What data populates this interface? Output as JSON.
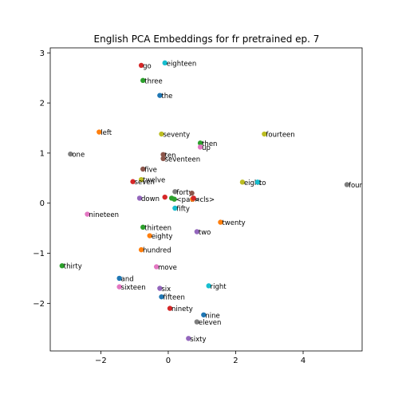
{
  "chart_data": {
    "type": "scatter",
    "title": "English PCA Embeddings for fr pretrained ep. 7",
    "xlabel": "",
    "ylabel": "",
    "xlim": [
      -3.5,
      5.75
    ],
    "ylim": [
      -2.95,
      3.1
    ],
    "xticks": [
      -2,
      0,
      2,
      4
    ],
    "yticks": [
      -2,
      -1,
      0,
      1,
      2,
      3
    ],
    "xtick_labels": [
      "−2",
      "0",
      "2",
      "4"
    ],
    "ytick_labels": [
      "−2",
      "−1",
      "0",
      "1",
      "2",
      "3"
    ],
    "grid": false,
    "points": [
      {
        "label": "go",
        "x": -0.8,
        "y": 2.75,
        "color": "#d62728"
      },
      {
        "label": "eighteen",
        "x": -0.1,
        "y": 2.8,
        "color": "#17becf"
      },
      {
        "label": "three",
        "x": -0.75,
        "y": 2.45,
        "color": "#2ca02c"
      },
      {
        "label": "the",
        "x": -0.25,
        "y": 2.15,
        "color": "#1f77b4"
      },
      {
        "label": "left",
        "x": -2.05,
        "y": 1.42,
        "color": "#ff7f0e"
      },
      {
        "label": "seventy",
        "x": -0.2,
        "y": 1.38,
        "color": "#bcbd22"
      },
      {
        "label": "fourteen",
        "x": 2.85,
        "y": 1.38,
        "color": "#bcbd22"
      },
      {
        "label": "then",
        "x": 0.95,
        "y": 1.2,
        "color": "#2ca02c"
      },
      {
        "label": "up",
        "x": 0.95,
        "y": 1.12,
        "color": "#e377c2"
      },
      {
        "label": "one",
        "x": -2.9,
        "y": 0.98,
        "color": "#7f7f7f"
      },
      {
        "label": "ten",
        "x": -0.15,
        "y": 0.97,
        "color": "#8c564b"
      },
      {
        "label": "seventeen",
        "x": -0.15,
        "y": 0.89,
        "color": "#8c564b"
      },
      {
        "label": "five",
        "x": -0.75,
        "y": 0.68,
        "color": "#8c564b"
      },
      {
        "label": "twelve",
        "x": -0.8,
        "y": 0.47,
        "color": "#bcbd22"
      },
      {
        "label": "seven",
        "x": -1.05,
        "y": 0.43,
        "color": "#d62728"
      },
      {
        "label": "eight",
        "x": 2.2,
        "y": 0.42,
        "color": "#bcbd22"
      },
      {
        "label": "to",
        "x": 2.65,
        "y": 0.42,
        "color": "#17becf"
      },
      {
        "label": "four",
        "x": 5.3,
        "y": 0.37,
        "color": "#7f7f7f"
      },
      {
        "label": "forty",
        "x": 0.2,
        "y": 0.23,
        "color": "#7f7f7f"
      },
      {
        "label": "",
        "x": 0.7,
        "y": 0.2,
        "color": "#8c564b"
      },
      {
        "label": "down",
        "x": -0.85,
        "y": 0.1,
        "color": "#9467bd"
      },
      {
        "label": "",
        "x": -0.1,
        "y": 0.12,
        "color": "#d62728"
      },
      {
        "label": "",
        "x": 0.1,
        "y": 0.1,
        "color": "#2ca02c"
      },
      {
        "label": "<pad>",
        "x": 0.18,
        "y": 0.08,
        "color": "#2ca02c"
      },
      {
        "label": "<cls>",
        "x": 0.72,
        "y": 0.08,
        "color": "#ff7f0e"
      },
      {
        "label": "",
        "x": 0.75,
        "y": 0.1,
        "color": "#d62728"
      },
      {
        "label": "fifty",
        "x": 0.2,
        "y": -0.1,
        "color": "#17becf"
      },
      {
        "label": "nineteen",
        "x": -2.4,
        "y": -0.22,
        "color": "#e377c2"
      },
      {
        "label": "twenty",
        "x": 1.55,
        "y": -0.38,
        "color": "#ff7f0e"
      },
      {
        "label": "thirteen",
        "x": -0.75,
        "y": -0.48,
        "color": "#2ca02c"
      },
      {
        "label": "two",
        "x": 0.85,
        "y": -0.57,
        "color": "#9467bd"
      },
      {
        "label": "eighty",
        "x": -0.55,
        "y": -0.65,
        "color": "#ff7f0e"
      },
      {
        "label": "hundred",
        "x": -0.8,
        "y": -0.93,
        "color": "#ff7f0e"
      },
      {
        "label": "thirty",
        "x": -3.15,
        "y": -1.25,
        "color": "#2ca02c"
      },
      {
        "label": "move",
        "x": -0.35,
        "y": -1.27,
        "color": "#e377c2"
      },
      {
        "label": "and",
        "x": -1.45,
        "y": -1.5,
        "color": "#1f77b4"
      },
      {
        "label": "sixteen",
        "x": -1.45,
        "y": -1.67,
        "color": "#e377c2"
      },
      {
        "label": "right",
        "x": 1.2,
        "y": -1.65,
        "color": "#17becf"
      },
      {
        "label": "six",
        "x": -0.25,
        "y": -1.7,
        "color": "#9467bd"
      },
      {
        "label": "fifteen",
        "x": -0.2,
        "y": -1.87,
        "color": "#1f77b4"
      },
      {
        "label": "ninety",
        "x": 0.05,
        "y": -2.1,
        "color": "#d62728"
      },
      {
        "label": "nine",
        "x": 1.05,
        "y": -2.23,
        "color": "#1f77b4"
      },
      {
        "label": "eleven",
        "x": 0.85,
        "y": -2.37,
        "color": "#7f7f7f"
      },
      {
        "label": "sixty",
        "x": 0.6,
        "y": -2.7,
        "color": "#9467bd"
      }
    ]
  }
}
